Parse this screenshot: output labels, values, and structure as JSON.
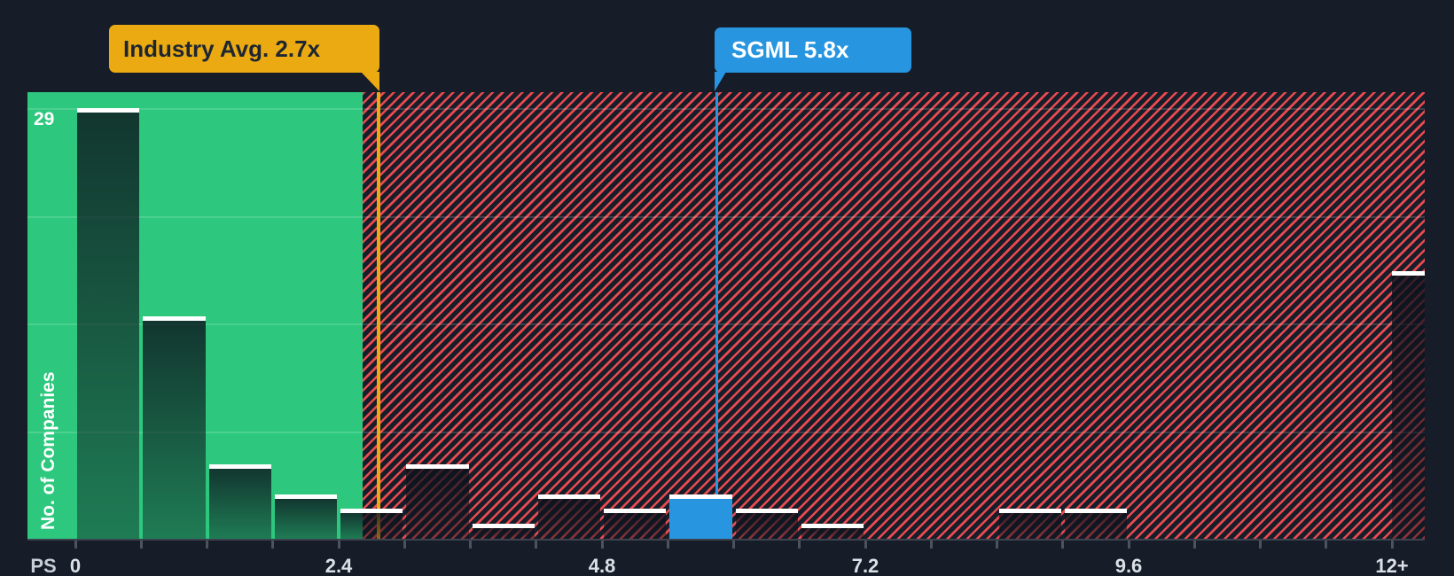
{
  "chart_data": {
    "type": "bar",
    "subtype": "histogram",
    "ylabel": "No. of Companies",
    "xlabel": "PS",
    "y_max_tick_label": "29",
    "ylim": [
      0,
      29
    ],
    "grid": "horizontal-quarter-lines",
    "legend_position": "none",
    "x_tick_labels": [
      "0",
      "2.4",
      "4.8",
      "7.2",
      "9.6",
      "12+"
    ],
    "x_tick_values": [
      0,
      2.4,
      4.8,
      7.2,
      9.6,
      12
    ],
    "bin_width": 0.6,
    "bins": [
      {
        "x0": 0.0,
        "x1": 0.6,
        "count": 29
      },
      {
        "x0": 0.6,
        "x1": 1.2,
        "count": 15
      },
      {
        "x0": 1.2,
        "x1": 1.8,
        "count": 5
      },
      {
        "x0": 1.8,
        "x1": 2.4,
        "count": 3
      },
      {
        "x0": 2.4,
        "x1": 3.0,
        "count": 2
      },
      {
        "x0": 3.0,
        "x1": 3.6,
        "count": 5
      },
      {
        "x0": 3.6,
        "x1": 4.2,
        "count": 1
      },
      {
        "x0": 4.2,
        "x1": 4.8,
        "count": 3
      },
      {
        "x0": 4.8,
        "x1": 5.4,
        "count": 2
      },
      {
        "x0": 5.4,
        "x1": 6.0,
        "count": 3,
        "highlight": true
      },
      {
        "x0": 6.0,
        "x1": 6.6,
        "count": 2
      },
      {
        "x0": 6.6,
        "x1": 7.2,
        "count": 1
      },
      {
        "x0": 7.2,
        "x1": 7.8,
        "count": 0
      },
      {
        "x0": 7.8,
        "x1": 8.4,
        "count": 0
      },
      {
        "x0": 8.4,
        "x1": 9.0,
        "count": 2
      },
      {
        "x0": 9.0,
        "x1": 9.6,
        "count": 2
      },
      {
        "x0": 9.6,
        "x1": 10.2,
        "count": 0
      },
      {
        "x0": 10.2,
        "x1": 10.8,
        "count": 0
      },
      {
        "x0": 10.8,
        "x1": 11.4,
        "count": 0
      },
      {
        "x0": 11.4,
        "x1": 12.0,
        "count": 0
      },
      {
        "x0": 12.0,
        "x1": null,
        "count": 18,
        "overflow": true,
        "label": "12+"
      }
    ],
    "markers": [
      {
        "id": "industry-avg",
        "label": "Industry Avg. 2.7x",
        "value": 2.7,
        "color": "#ecaa12"
      },
      {
        "id": "company",
        "label": "SGML 5.8x",
        "value": 5.8,
        "color": "#2795e0"
      }
    ],
    "zones": [
      {
        "id": "below-industry-average",
        "from": 0,
        "to": 2.7,
        "style": "solid",
        "color": "#2dc87d"
      },
      {
        "id": "above-industry-average",
        "from": 2.7,
        "to": 12.3,
        "style": "red-hatch",
        "color": "#e84a50"
      }
    ]
  },
  "colors": {
    "background": "#161d28",
    "zone_green": "#2dc87d",
    "hatch_red": "#e84a50",
    "bar_cap": "#ffffff",
    "bar_fill_dark": "#0b121c",
    "marker_industry": "#ecaa12",
    "marker_company": "#2795e0",
    "industry_tooltip_text": "#1d2631",
    "company_tooltip_text": "#ffffff",
    "axis_text": "#dce0e6"
  }
}
